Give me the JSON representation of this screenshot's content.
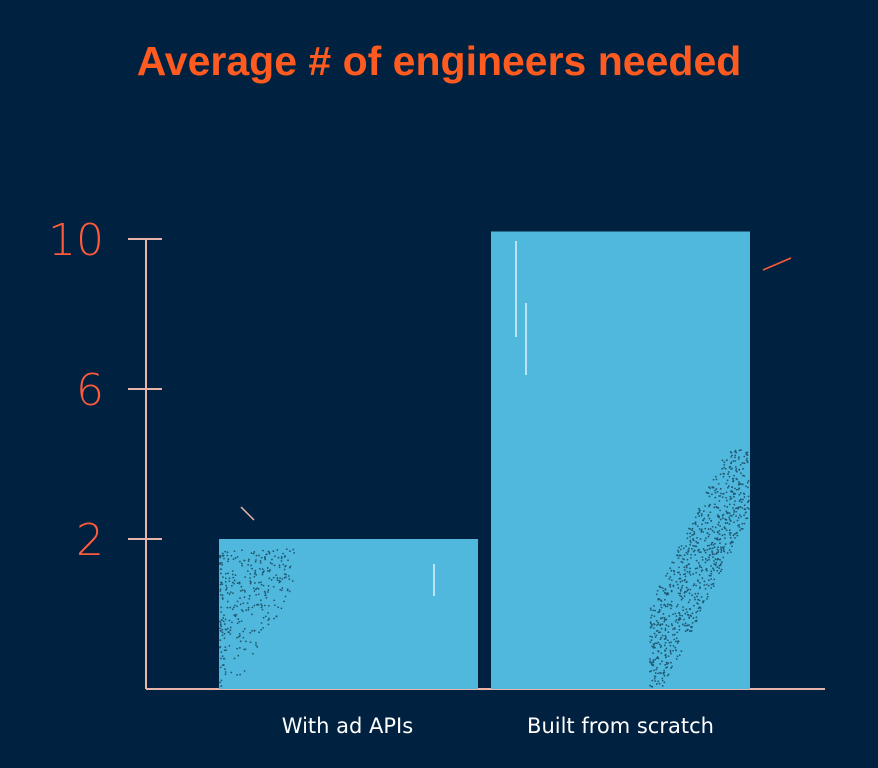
{
  "chart_data": {
    "type": "bar",
    "title": "Average # of engineers needed",
    "categories": [
      "With ad APIs",
      "Built from scratch"
    ],
    "values": [
      2,
      10.2
    ],
    "yticks": [
      2,
      6,
      10
    ],
    "xlabel": "",
    "ylabel": "",
    "grid": false,
    "colors": {
      "background": "#00213f",
      "bar": "#50b8dd",
      "title": "#ff5a1f",
      "tick_labels": "#ff5a3c",
      "axis": "#e8b4aa",
      "category_labels": "#ffffff"
    }
  }
}
